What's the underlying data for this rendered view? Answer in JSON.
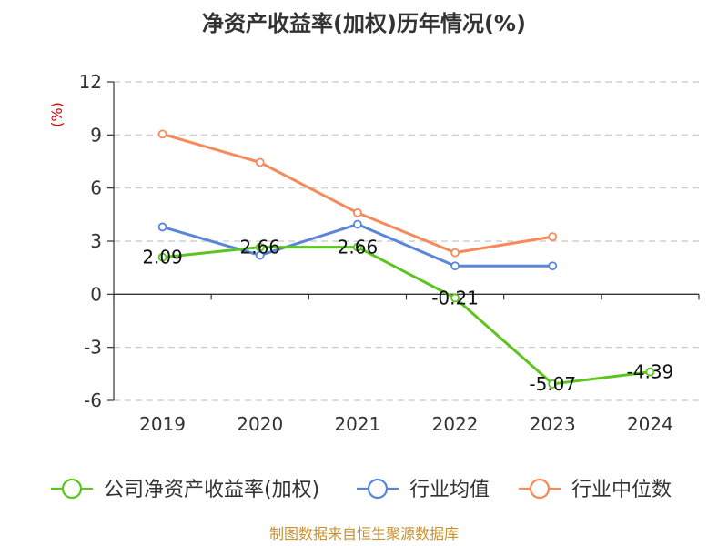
{
  "chart_data": {
    "type": "line",
    "title": "净资产收益率(加权)历年情况(%)",
    "ylabel": "(%)",
    "xlabel": "",
    "categories": [
      "2019",
      "2020",
      "2021",
      "2022",
      "2023",
      "2024"
    ],
    "ylim": [
      -6,
      12
    ],
    "yticks": [
      12,
      9,
      6,
      3,
      0,
      -3,
      -6
    ],
    "grid": true,
    "legend_position": "bottom",
    "series": [
      {
        "name": "公司净资产收益率(加权)",
        "color": "#5cc41f",
        "values": [
          2.09,
          2.66,
          2.66,
          -0.21,
          -5.07,
          -4.39
        ],
        "labels": [
          "2.09",
          "2.66",
          "2.66",
          "-0.21",
          "-5.07",
          "-4.39"
        ]
      },
      {
        "name": "行业均值",
        "color": "#5a86d8",
        "values": [
          3.8,
          2.2,
          3.95,
          1.6,
          1.6,
          null
        ]
      },
      {
        "name": "行业中位数",
        "color": "#f68a5a",
        "values": [
          9.05,
          7.45,
          4.6,
          2.35,
          3.25,
          null
        ]
      }
    ],
    "source": "制图数据来自恒生聚源数据库"
  }
}
